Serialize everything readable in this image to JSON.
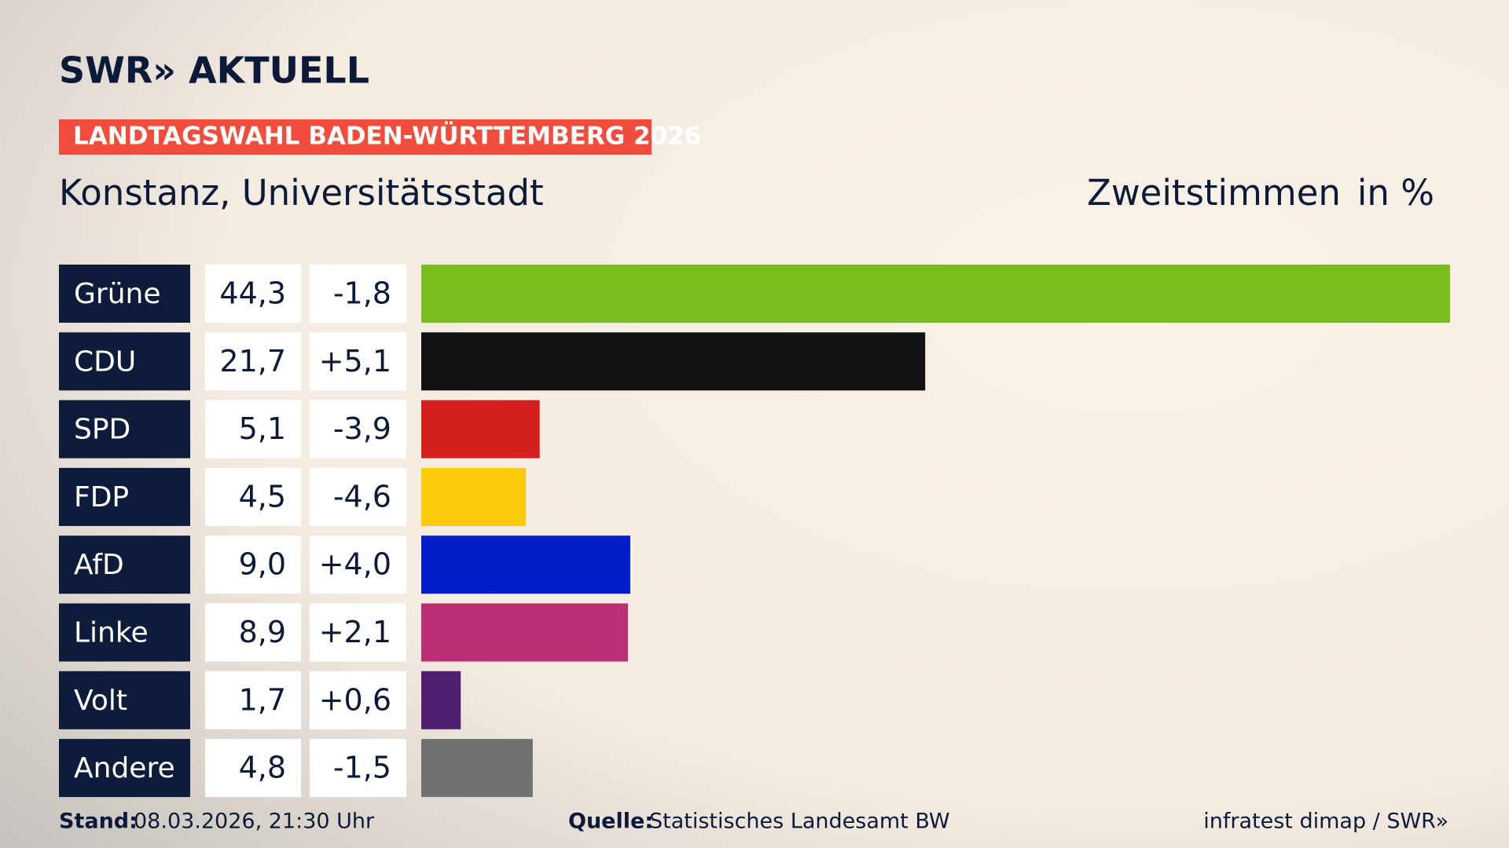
{
  "chart_data": {
    "type": "bar",
    "logo": "SWR» AKTUELL",
    "title": "LANDTAGSWAHL BADEN-WÜRTTEMBERG 2026",
    "subtitle": "Konstanz, Universitätsstadt",
    "measure": "Zweitstimmen",
    "unit": "in %",
    "categories": [
      "Grüne",
      "CDU",
      "SPD",
      "FDP",
      "AfD",
      "Linke",
      "Volt",
      "Andere"
    ],
    "values": [
      44.3,
      21.7,
      5.1,
      4.5,
      9.0,
      8.9,
      1.7,
      4.8
    ],
    "value_labels": [
      "44,3",
      "21,7",
      "5,1",
      "4,5",
      "9,0",
      "8,9",
      "1,7",
      "4,8"
    ],
    "changes": [
      -1.8,
      5.1,
      -3.9,
      -4.6,
      4.0,
      2.1,
      0.6,
      -1.5
    ],
    "change_labels": [
      "-1,8",
      "+5,1",
      "-3,9",
      "-4,6",
      "+4,0",
      "+2,1",
      "+0,6",
      "-1,5"
    ],
    "colors": [
      "#78bc1e",
      "#121212",
      "#d61f1f",
      "#fccb0a",
      "#001fc8",
      "#bb2f75",
      "#4e1e73",
      "#717171"
    ],
    "footer": {
      "stand_label": "Stand:",
      "stand": "08.03.2026, 21:30 Uhr",
      "source_label": "Quelle:",
      "source": "Statistisches Landesamt BW",
      "credit": "infratest dimap / SWR»"
    }
  }
}
